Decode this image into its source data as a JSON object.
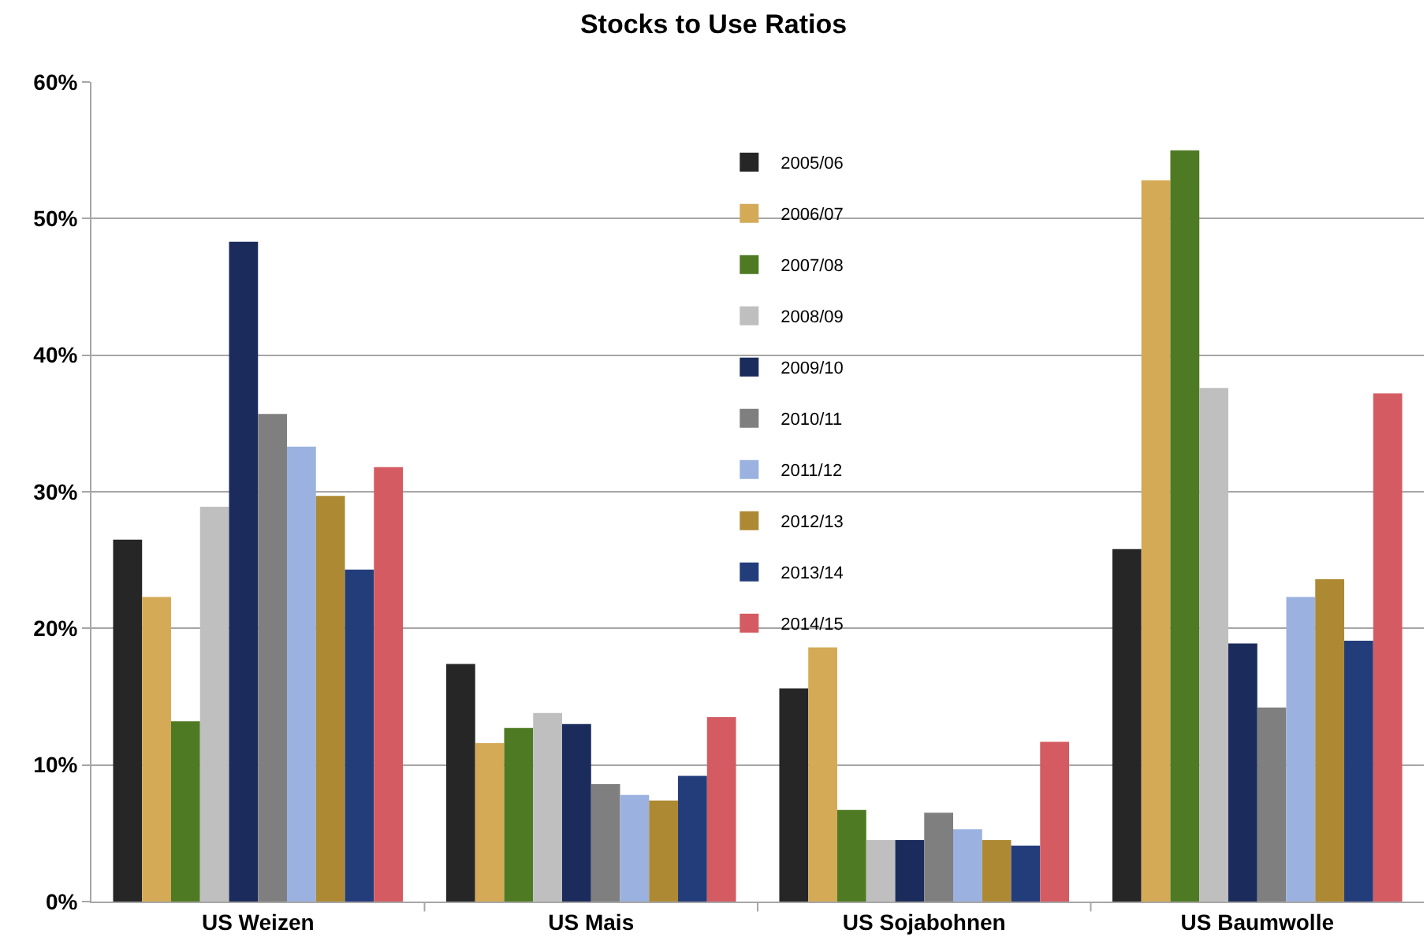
{
  "chart_data": {
    "type": "bar",
    "title": "Stocks to Use Ratios",
    "categories": [
      "US Weizen",
      "US Mais",
      "US Sojabohnen",
      "US Baumwolle"
    ],
    "series": [
      {
        "name": "2005/06",
        "color": "#262626",
        "values": [
          26.5,
          17.4,
          15.6,
          25.8
        ]
      },
      {
        "name": "2006/07",
        "color": "#d4aa57",
        "values": [
          22.3,
          11.6,
          18.6,
          52.8
        ]
      },
      {
        "name": "2007/08",
        "color": "#4f7a24",
        "values": [
          13.2,
          12.7,
          6.7,
          55.0
        ]
      },
      {
        "name": "2008/09",
        "color": "#bfbfbf",
        "values": [
          28.9,
          13.8,
          4.5,
          37.6
        ]
      },
      {
        "name": "2009/10",
        "color": "#1b2c5c",
        "values": [
          48.3,
          13.0,
          4.5,
          18.9
        ]
      },
      {
        "name": "2010/11",
        "color": "#7f7f7f",
        "values": [
          35.7,
          8.6,
          6.5,
          14.2
        ]
      },
      {
        "name": "2011/12",
        "color": "#9bb2e0",
        "values": [
          33.3,
          7.8,
          5.3,
          22.3
        ]
      },
      {
        "name": "2012/13",
        "color": "#ae8933",
        "values": [
          29.7,
          7.4,
          4.5,
          23.6
        ]
      },
      {
        "name": "2013/14",
        "color": "#233d7b",
        "values": [
          24.3,
          9.2,
          4.1,
          19.1
        ]
      },
      {
        "name": "2014/15",
        "color": "#d45b62",
        "values": [
          31.8,
          13.5,
          11.7,
          37.2
        ]
      }
    ],
    "ylim": [
      0,
      60
    ],
    "yticks": [
      {
        "value": 0,
        "label": "0%"
      },
      {
        "value": 10,
        "label": "10%"
      },
      {
        "value": 20,
        "label": "20%"
      },
      {
        "value": 30,
        "label": "30%"
      },
      {
        "value": 40,
        "label": "40%"
      },
      {
        "value": 50,
        "label": "50%"
      },
      {
        "value": 60,
        "label": "60%"
      }
    ],
    "grid": "y",
    "legend": "top"
  }
}
